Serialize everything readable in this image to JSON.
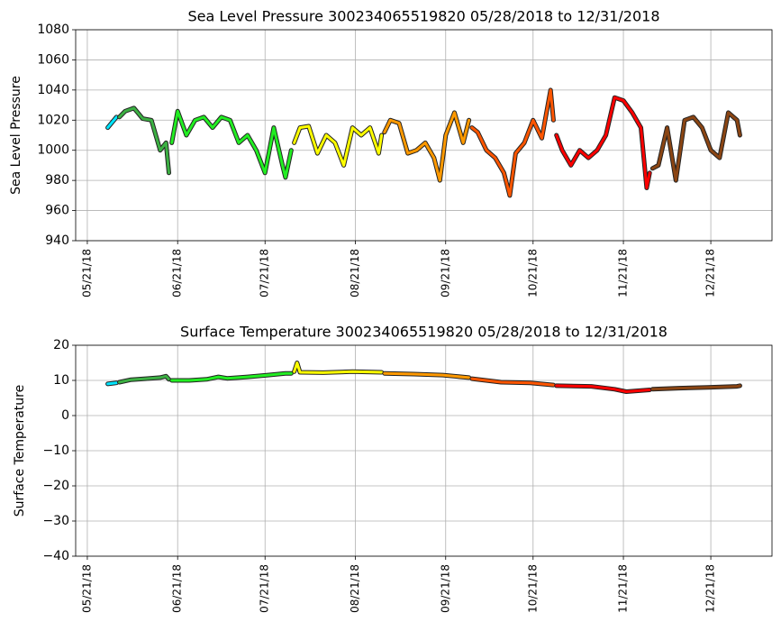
{
  "chart_data": [
    {
      "type": "line",
      "title": "Sea Level Pressure 300234065519820  05/28/2018 to 12/31/2018",
      "ylabel": "Sea Level Pressure",
      "xlim": [
        "2018-05-17",
        "2019-01-11"
      ],
      "ylim": [
        940,
        1080
      ],
      "yticks": [
        940,
        960,
        980,
        1000,
        1020,
        1040,
        1060,
        1080
      ],
      "xticks": [
        {
          "value": "2018-05-21",
          "label": "05/21/18"
        },
        {
          "value": "2018-06-21",
          "label": "06/21/18"
        },
        {
          "value": "2018-07-21",
          "label": "07/21/18"
        },
        {
          "value": "2018-08-21",
          "label": "08/21/18"
        },
        {
          "value": "2018-09-21",
          "label": "09/21/18"
        },
        {
          "value": "2018-10-21",
          "label": "10/21/18"
        },
        {
          "value": "2018-11-21",
          "label": "11/21/18"
        },
        {
          "value": "2018-12-21",
          "label": "12/21/18"
        }
      ],
      "grid": true,
      "series": [
        {
          "color": "#00e5ff",
          "x": [
            "2018-05-28",
            "2018-05-31"
          ],
          "values": [
            1015,
            1022
          ]
        },
        {
          "color": "#3cb043",
          "x": [
            "2018-06-01",
            "2018-06-03",
            "2018-06-06",
            "2018-06-09",
            "2018-06-12",
            "2018-06-15",
            "2018-06-17",
            "2018-06-18"
          ],
          "values": [
            1022,
            1026,
            1028,
            1021,
            1020,
            1000,
            1005,
            985
          ]
        },
        {
          "color": "#22ee22",
          "x": [
            "2018-06-19",
            "2018-06-21",
            "2018-06-24",
            "2018-06-27",
            "2018-06-30",
            "2018-07-03",
            "2018-07-06",
            "2018-07-09",
            "2018-07-12",
            "2018-07-15",
            "2018-07-18",
            "2018-07-21",
            "2018-07-24",
            "2018-07-27",
            "2018-07-28",
            "2018-07-30"
          ],
          "values": [
            1005,
            1026,
            1010,
            1020,
            1022,
            1015,
            1022,
            1020,
            1005,
            1010,
            1000,
            985,
            1015,
            990,
            982,
            1000
          ]
        },
        {
          "color": "#ffff00",
          "x": [
            "2018-07-31",
            "2018-08-02",
            "2018-08-05",
            "2018-08-08",
            "2018-08-11",
            "2018-08-14",
            "2018-08-17",
            "2018-08-20",
            "2018-08-23",
            "2018-08-26",
            "2018-08-29",
            "2018-08-30"
          ],
          "values": [
            1005,
            1015,
            1016,
            998,
            1010,
            1005,
            990,
            1015,
            1010,
            1015,
            998,
            1010
          ]
        },
        {
          "color": "#ff9900",
          "x": [
            "2018-08-31",
            "2018-09-02",
            "2018-09-05",
            "2018-09-08",
            "2018-09-11",
            "2018-09-14",
            "2018-09-17",
            "2018-09-19",
            "2018-09-21",
            "2018-09-24",
            "2018-09-27",
            "2018-09-29"
          ],
          "values": [
            1012,
            1020,
            1018,
            998,
            1000,
            1005,
            995,
            980,
            1010,
            1025,
            1005,
            1020
          ]
        },
        {
          "color": "#ff5500",
          "x": [
            "2018-09-30",
            "2018-10-02",
            "2018-10-05",
            "2018-10-08",
            "2018-10-11",
            "2018-10-13",
            "2018-10-15",
            "2018-10-18",
            "2018-10-21",
            "2018-10-24",
            "2018-10-27",
            "2018-10-28"
          ],
          "values": [
            1015,
            1012,
            1000,
            995,
            985,
            970,
            998,
            1005,
            1020,
            1008,
            1040,
            1020
          ]
        },
        {
          "color": "#ff0000",
          "x": [
            "2018-10-29",
            "2018-10-31",
            "2018-11-03",
            "2018-11-06",
            "2018-11-09",
            "2018-11-12",
            "2018-11-15",
            "2018-11-18",
            "2018-11-21",
            "2018-11-24",
            "2018-11-27",
            "2018-11-29",
            "2018-11-30"
          ],
          "values": [
            1010,
            1000,
            990,
            1000,
            995,
            1000,
            1010,
            1035,
            1033,
            1025,
            1015,
            975,
            985
          ]
        },
        {
          "color": "#8b4513",
          "x": [
            "2018-12-01",
            "2018-12-03",
            "2018-12-06",
            "2018-12-09",
            "2018-12-12",
            "2018-12-15",
            "2018-12-18",
            "2018-12-21",
            "2018-12-24",
            "2018-12-27",
            "2018-12-30",
            "2018-12-31"
          ],
          "values": [
            988,
            990,
            1015,
            980,
            1020,
            1022,
            1015,
            1000,
            995,
            1025,
            1020,
            1010
          ]
        }
      ]
    },
    {
      "type": "line",
      "title": "Surface Temperature 300234065519820  05/28/2018 to 12/31/2018",
      "ylabel": "Surface Temperature",
      "xlim": [
        "2018-05-17",
        "2019-01-11"
      ],
      "ylim": [
        -40,
        20
      ],
      "yticks": [
        {
          "value": -40,
          "label": "−40"
        },
        {
          "value": -30,
          "label": "−30"
        },
        {
          "value": -20,
          "label": "−20"
        },
        {
          "value": -10,
          "label": "−10"
        },
        0,
        10,
        20
      ],
      "xticks": [
        {
          "value": "2018-05-21",
          "label": "05/21/18"
        },
        {
          "value": "2018-06-21",
          "label": "06/21/18"
        },
        {
          "value": "2018-07-21",
          "label": "07/21/18"
        },
        {
          "value": "2018-08-21",
          "label": "08/21/18"
        },
        {
          "value": "2018-09-21",
          "label": "09/21/18"
        },
        {
          "value": "2018-10-21",
          "label": "10/21/18"
        },
        {
          "value": "2018-11-21",
          "label": "11/21/18"
        },
        {
          "value": "2018-12-21",
          "label": "12/21/18"
        }
      ],
      "grid": true,
      "series": [
        {
          "color": "#00e5ff",
          "x": [
            "2018-05-28",
            "2018-05-31"
          ],
          "values": [
            9,
            9.3
          ]
        },
        {
          "color": "#3cb043",
          "x": [
            "2018-06-01",
            "2018-06-05",
            "2018-06-10",
            "2018-06-15",
            "2018-06-17",
            "2018-06-18"
          ],
          "values": [
            9.5,
            10.2,
            10.5,
            10.8,
            11.2,
            10.3
          ]
        },
        {
          "color": "#22ee22",
          "x": [
            "2018-06-19",
            "2018-06-25",
            "2018-07-01",
            "2018-07-05",
            "2018-07-08",
            "2018-07-15",
            "2018-07-22",
            "2018-07-28",
            "2018-07-30"
          ],
          "values": [
            10,
            10,
            10.3,
            11,
            10.6,
            11,
            11.5,
            12,
            12
          ]
        },
        {
          "color": "#ffff00",
          "x": [
            "2018-07-31",
            "2018-08-01",
            "2018-08-02",
            "2018-08-10",
            "2018-08-20",
            "2018-08-30"
          ],
          "values": [
            12.5,
            15,
            12.3,
            12.2,
            12.5,
            12.3
          ]
        },
        {
          "color": "#ff9900",
          "x": [
            "2018-08-31",
            "2018-09-10",
            "2018-09-20",
            "2018-09-29"
          ],
          "values": [
            12,
            11.8,
            11.5,
            10.8
          ]
        },
        {
          "color": "#ff5500",
          "x": [
            "2018-09-30",
            "2018-10-10",
            "2018-10-20",
            "2018-10-28"
          ],
          "values": [
            10.5,
            9.5,
            9.3,
            8.7
          ]
        },
        {
          "color": "#ff0000",
          "x": [
            "2018-10-29",
            "2018-11-10",
            "2018-11-18",
            "2018-11-22",
            "2018-11-30"
          ],
          "values": [
            8.5,
            8.3,
            7.5,
            6.8,
            7.3
          ]
        },
        {
          "color": "#8b4513",
          "x": [
            "2018-12-01",
            "2018-12-10",
            "2018-12-20",
            "2018-12-30",
            "2018-12-31"
          ],
          "values": [
            7.5,
            7.8,
            8,
            8.3,
            8.5
          ]
        }
      ]
    }
  ]
}
